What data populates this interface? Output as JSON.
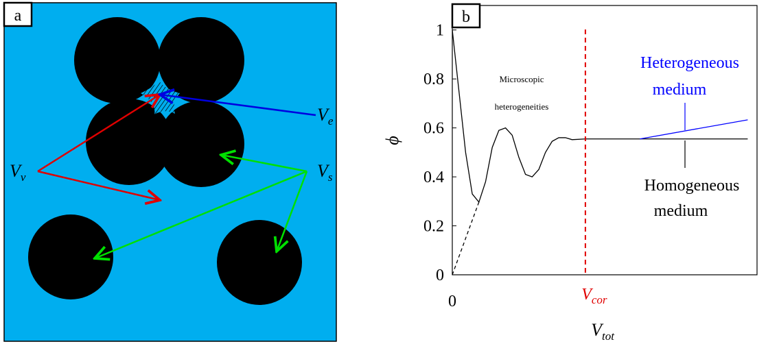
{
  "panel_a": {
    "label": "a",
    "labels": {
      "v": {
        "main": "V",
        "sub": "v"
      },
      "e": {
        "main": "V",
        "sub": "e"
      },
      "s": {
        "main": "V",
        "sub": "s"
      }
    }
  },
  "chart_data": {
    "type": "line",
    "panel_label": "b",
    "y_label": "ϕ",
    "x_label": {
      "main": "V",
      "sub": "tot"
    },
    "xlim": [
      0,
      2.29
    ],
    "ylim": [
      0,
      1.1
    ],
    "xticks": [
      0,
      {
        "value": 1,
        "label": {
          "main": "V",
          "sub": "cor"
        }
      }
    ],
    "yticks": [
      0,
      0.2,
      0.4,
      0.6,
      0.8,
      1
    ],
    "series": [
      {
        "color": "#000000",
        "dash": false,
        "x": [
          0,
          0.05,
          0.1,
          0.15,
          0.2,
          0.25,
          0.3,
          0.35,
          0.4,
          0.45,
          0.5,
          0.55,
          0.6,
          0.65,
          0.7,
          0.75,
          0.8,
          0.85,
          0.9,
          1,
          2.22
        ],
        "values": [
          1,
          0.75,
          0.5,
          0.33,
          0.297,
          0.38,
          0.52,
          0.59,
          0.6,
          0.57,
          0.48,
          0.41,
          0.4,
          0.43,
          0.5,
          0.545,
          0.56,
          0.56,
          0.552,
          0.555,
          0.555
        ]
      },
      {
        "color": "#000000",
        "dash": true,
        "x": [
          0,
          0.2
        ],
        "values": [
          0,
          0.297
        ]
      },
      {
        "color": "#0000ff",
        "dash": false,
        "x": [
          1.41,
          2.22
        ],
        "values": [
          0.555,
          0.633
        ]
      }
    ],
    "vline_color": "#e00000",
    "annotations": {
      "micro1": "Microscopic",
      "micro2": "heterogeneities",
      "hetero1": "Heterogeneous",
      "hetero2": "medium",
      "homo1": "Homogeneous",
      "homo2": "medium"
    }
  }
}
